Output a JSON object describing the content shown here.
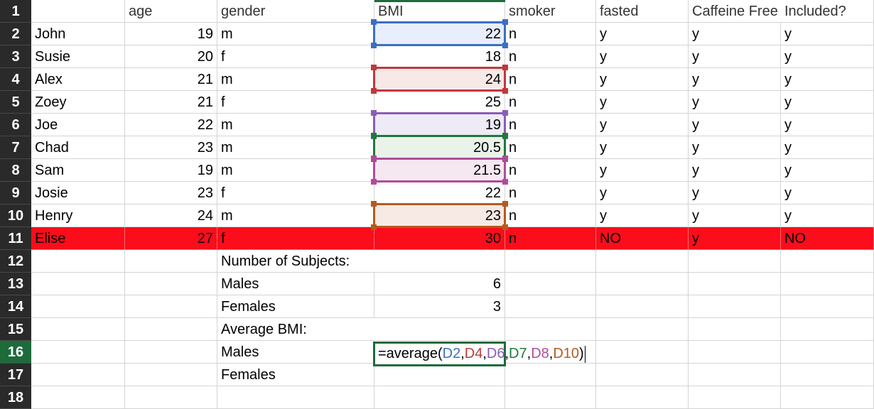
{
  "columns": [
    "",
    "age",
    "gender",
    "BMI",
    "smoker",
    "fasted",
    "Caffeine Free",
    "Included?"
  ],
  "rows": [
    {
      "num": "1"
    },
    {
      "num": "2",
      "cells": [
        "John",
        "19",
        "m",
        "22",
        "n",
        "y",
        "y",
        "y"
      ]
    },
    {
      "num": "3",
      "cells": [
        "Susie",
        "20",
        "f",
        "18",
        "n",
        "y",
        "y",
        "y"
      ]
    },
    {
      "num": "4",
      "cells": [
        "Alex",
        "21",
        "m",
        "24",
        "n",
        "y",
        "y",
        "y"
      ]
    },
    {
      "num": "5",
      "cells": [
        "Zoey",
        "21",
        "f",
        "25",
        "n",
        "y",
        "y",
        "y"
      ]
    },
    {
      "num": "6",
      "cells": [
        "Joe",
        "22",
        "m",
        "19",
        "n",
        "y",
        "y",
        "y"
      ]
    },
    {
      "num": "7",
      "cells": [
        "Chad",
        "23",
        "m",
        "20.5",
        "n",
        "y",
        "y",
        "y"
      ]
    },
    {
      "num": "8",
      "cells": [
        "Sam",
        "19",
        "m",
        "21.5",
        "n",
        "y",
        "y",
        "y"
      ]
    },
    {
      "num": "9",
      "cells": [
        "Josie",
        "23",
        "f",
        "22",
        "n",
        "y",
        "y",
        "y"
      ]
    },
    {
      "num": "10",
      "cells": [
        "Henry",
        "24",
        "m",
        "23",
        "n",
        "y",
        "y",
        "y"
      ]
    },
    {
      "num": "11",
      "cells": [
        "Elise",
        "27",
        "f",
        "30",
        "n",
        "NO",
        "y",
        "NO"
      ],
      "highlight": "#fb0d1b"
    },
    {
      "num": "12",
      "cells": [
        "",
        "",
        "Number of Subjects:",
        "",
        "",
        "",
        "",
        ""
      ]
    },
    {
      "num": "13",
      "cells": [
        "",
        "",
        "Males",
        "6",
        "",
        "",
        "",
        ""
      ]
    },
    {
      "num": "14",
      "cells": [
        "",
        "",
        "Females",
        "3",
        "",
        "",
        "",
        ""
      ]
    },
    {
      "num": "15",
      "cells": [
        "",
        "",
        "Average BMI:",
        "",
        "",
        "",
        "",
        ""
      ]
    },
    {
      "num": "16",
      "cells": [
        "",
        "",
        "Males",
        "",
        "",
        "",
        "",
        ""
      ]
    },
    {
      "num": "17",
      "cells": [
        "",
        "",
        "Females",
        "",
        "",
        "",
        "",
        ""
      ]
    },
    {
      "num": "18",
      "cells": [
        "",
        "",
        "",
        "",
        "",
        "",
        "",
        ""
      ]
    }
  ],
  "formula": {
    "prefix": "=average(",
    "suffix": ")",
    "sep": ",",
    "refs": [
      {
        "text": "D2",
        "row": 2,
        "color": "#3a6fc4"
      },
      {
        "text": "D4",
        "row": 4,
        "color": "#c0393b"
      },
      {
        "text": "D6",
        "row": 6,
        "color": "#8a5cb8"
      },
      {
        "text": "D7",
        "row": 7,
        "color": "#1f7a3a"
      },
      {
        "text": "D8",
        "row": 8,
        "color": "#b04c97"
      },
      {
        "text": "D10",
        "row": 10,
        "color": "#b55a1d"
      }
    ]
  }
}
